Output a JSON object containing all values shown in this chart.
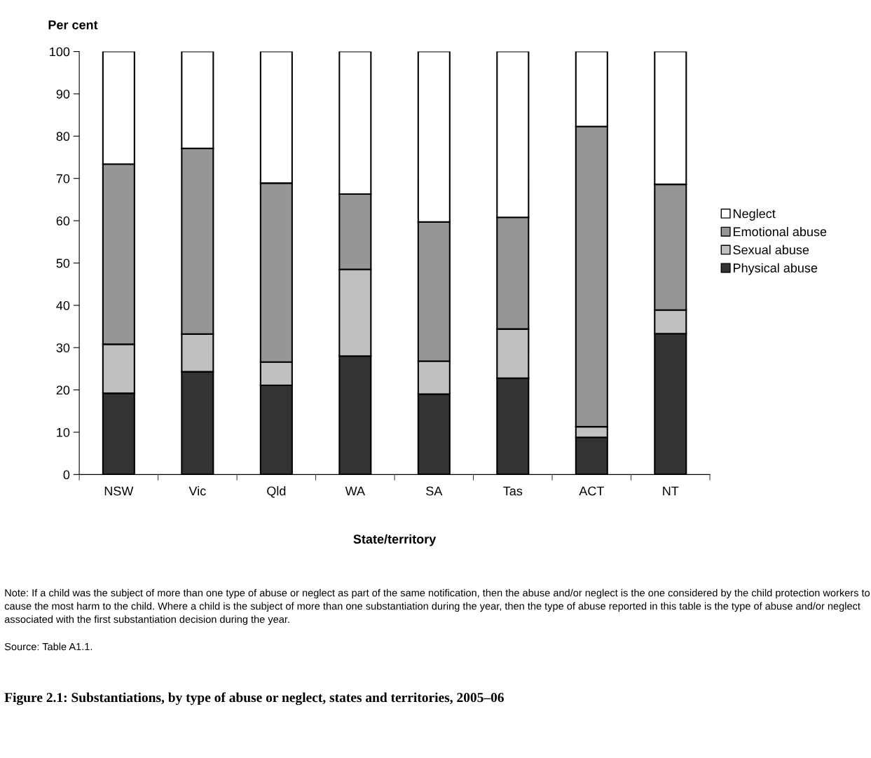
{
  "chart_data": {
    "type": "bar",
    "stacked": true,
    "title": "Figure 2.1: Substantiations, by type of abuse or neglect, states and territories, 2005–06",
    "ylabel": "Per cent",
    "xlabel": "State/territory",
    "categories": [
      "NSW",
      "Vic",
      "Qld",
      "WA",
      "SA",
      "Tas",
      "ACT",
      "NT"
    ],
    "series": [
      {
        "name": "Physical abuse",
        "color": "#333333",
        "values": [
          19.2,
          24.3,
          21.1,
          28.0,
          19.0,
          22.8,
          8.8,
          33.3
        ]
      },
      {
        "name": "Sexual abuse",
        "color": "#c0c0c0",
        "values": [
          11.6,
          8.9,
          5.5,
          20.5,
          7.8,
          11.6,
          2.5,
          5.6
        ]
      },
      {
        "name": "Emotional abuse",
        "color": "#969696",
        "values": [
          42.6,
          43.9,
          42.3,
          17.8,
          32.9,
          26.4,
          71.0,
          29.7
        ]
      },
      {
        "name": "Neglect",
        "color": "#ffffff",
        "values": [
          26.6,
          22.9,
          31.1,
          33.7,
          40.3,
          39.2,
          17.7,
          31.4
        ]
      }
    ],
    "ylim": [
      0,
      100
    ],
    "yticks": [
      0,
      10,
      20,
      30,
      40,
      50,
      60,
      70,
      80,
      90,
      100
    ],
    "grid": false,
    "legend": "right",
    "annotations": [
      "Note: If a child was the subject of more than one type of abuse or neglect as part of the same notification, then the abuse and/or neglect is the one considered by the child protection workers to cause the most harm to the child. Where a child is the subject of more than one substantiation during the year, then the type of abuse reported in this table is the type of abuse and/or neglect associated with the first substantiation decision during the year.",
      "Source: Table A1.1."
    ]
  }
}
